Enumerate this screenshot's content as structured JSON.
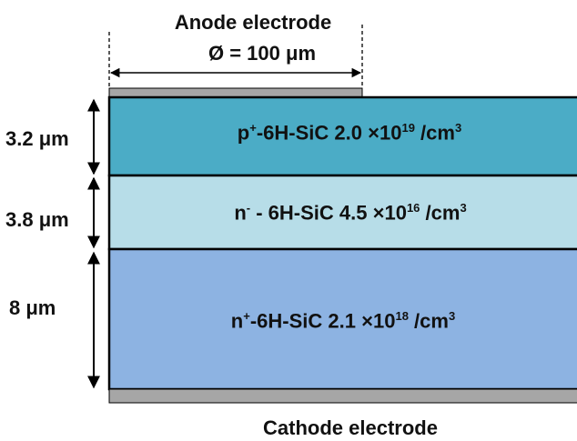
{
  "anode": {
    "label": "Anode electrode",
    "diameter": {
      "symbol": "Ø",
      "text": " = 100 μm"
    }
  },
  "cathode": {
    "label": "Cathode electrode"
  },
  "layers": [
    {
      "thickness": "3.2 μm",
      "pre": "p",
      "sup1": "+",
      "mid": "-6H-SiC 2.0",
      "times": "×",
      "base": "10",
      "exp": "19",
      "unit": " /cm",
      "unit_exp": "3",
      "color": "#4bacc6"
    },
    {
      "thickness": "3.8 μm",
      "pre": "n",
      "sup1": "-",
      "mid": " - 6H-SiC 4.5",
      "times": "×",
      "base": "10",
      "exp": "16",
      "unit": " /cm",
      "unit_exp": "3",
      "color": "#b7dde8"
    },
    {
      "thickness": "8 μm",
      "pre": "n",
      "sup1": "+",
      "mid": "-6H-SiC 2.1",
      "times": "×",
      "base": "10",
      "exp": "18",
      "unit": " /cm",
      "unit_exp": "3",
      "color": "#8db3e2"
    }
  ],
  "colors": {
    "electrode": "#a6a6a6",
    "border": "#000000"
  }
}
